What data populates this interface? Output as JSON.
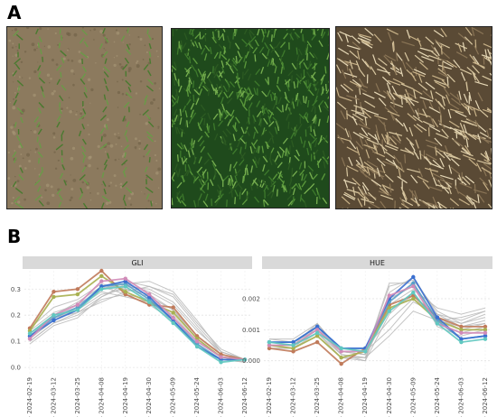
{
  "panels": {
    "a": "A",
    "b": "B"
  },
  "photos": [
    {
      "name": "early-growth-rows",
      "ground": "#8c7a5e",
      "plant": "#3f6b2a"
    },
    {
      "name": "dense-green-canopy",
      "ground": "#1f4a1c",
      "plant": "#5c9a3c"
    },
    {
      "name": "senescent-straw",
      "ground": "#5a4a35",
      "plant": "#d8c7a0"
    }
  ],
  "chart_data": [
    {
      "type": "line",
      "title": "GLI",
      "x": [
        "2024-02-19",
        "2024-03-12",
        "2024-03-25",
        "2024-04-08",
        "2024-04-19",
        "2024-04-30",
        "2024-05-09",
        "2024-05-24",
        "2024-06-03",
        "2024-06-12"
      ],
      "yticks": [
        "0.0",
        "0.1",
        "0.2",
        "0.3"
      ],
      "ylim": [
        -0.01,
        0.37
      ],
      "grid": true,
      "background_series_color": "#b8b8b8",
      "background_series": [
        [
          0.1,
          0.17,
          0.2,
          0.26,
          0.28,
          0.26,
          0.2,
          0.1,
          0.04,
          0.03
        ],
        [
          0.12,
          0.19,
          0.22,
          0.28,
          0.3,
          0.28,
          0.22,
          0.12,
          0.05,
          0.03
        ],
        [
          0.14,
          0.21,
          0.24,
          0.3,
          0.32,
          0.29,
          0.24,
          0.14,
          0.06,
          0.03
        ],
        [
          0.09,
          0.16,
          0.19,
          0.27,
          0.31,
          0.3,
          0.25,
          0.15,
          0.05,
          0.03
        ],
        [
          0.13,
          0.2,
          0.23,
          0.29,
          0.27,
          0.25,
          0.19,
          0.09,
          0.03,
          0.02
        ],
        [
          0.11,
          0.18,
          0.22,
          0.3,
          0.33,
          0.31,
          0.27,
          0.16,
          0.06,
          0.03
        ],
        [
          0.15,
          0.23,
          0.26,
          0.32,
          0.3,
          0.27,
          0.22,
          0.11,
          0.04,
          0.02
        ],
        [
          0.1,
          0.17,
          0.21,
          0.25,
          0.29,
          0.31,
          0.28,
          0.17,
          0.07,
          0.03
        ],
        [
          0.12,
          0.2,
          0.25,
          0.31,
          0.28,
          0.24,
          0.18,
          0.08,
          0.03,
          0.02
        ],
        [
          0.13,
          0.19,
          0.21,
          0.27,
          0.32,
          0.33,
          0.29,
          0.18,
          0.06,
          0.03
        ]
      ],
      "highlight_series": [
        {
          "color": "#c07a5a",
          "values": [
            0.15,
            0.29,
            0.3,
            0.37,
            0.28,
            0.24,
            0.23,
            0.12,
            0.05,
            0.03
          ]
        },
        {
          "color": "#a8b050",
          "values": [
            0.14,
            0.27,
            0.28,
            0.35,
            0.29,
            0.25,
            0.21,
            0.11,
            0.04,
            0.03
          ]
        },
        {
          "color": "#5aa0c8",
          "values": [
            0.12,
            0.19,
            0.23,
            0.31,
            0.32,
            0.26,
            0.18,
            0.09,
            0.03,
            0.03
          ]
        },
        {
          "color": "#3a6fd0",
          "values": [
            0.12,
            0.18,
            0.22,
            0.31,
            0.33,
            0.27,
            0.18,
            0.08,
            0.03,
            0.03
          ]
        },
        {
          "color": "#d08bb8",
          "values": [
            0.11,
            0.2,
            0.24,
            0.33,
            0.34,
            0.28,
            0.19,
            0.1,
            0.04,
            0.03
          ]
        },
        {
          "color": "#60c8c0",
          "values": [
            0.13,
            0.2,
            0.22,
            0.3,
            0.31,
            0.25,
            0.17,
            0.08,
            0.02,
            0.03
          ]
        }
      ]
    },
    {
      "type": "line",
      "title": "HUE",
      "x": [
        "2024-02-19",
        "2024-03-12",
        "2024-03-25",
        "2024-04-08",
        "2024-04-19",
        "2024-04-30",
        "2024-05-09",
        "2024-05-24",
        "2024-06-03",
        "2024-06-12"
      ],
      "yticks": [
        "0.000",
        "0.001",
        "0.002"
      ],
      "ylim": [
        -0.0003,
        0.0029
      ],
      "grid": true,
      "background_series_color": "#b8b8b8",
      "background_series": [
        [
          0.0005,
          0.0005,
          0.0009,
          0.0002,
          0.0001,
          0.002,
          0.0024,
          0.0014,
          0.001,
          0.0012
        ],
        [
          0.0006,
          0.0006,
          0.001,
          0.0003,
          0.0002,
          0.0024,
          0.0026,
          0.0016,
          0.0012,
          0.0014
        ],
        [
          0.0004,
          0.0004,
          0.0008,
          0.0001,
          0.0,
          0.0015,
          0.0022,
          0.0012,
          0.0009,
          0.0011
        ],
        [
          0.0007,
          0.0006,
          0.0011,
          0.0004,
          0.0003,
          0.001,
          0.0019,
          0.0015,
          0.0013,
          0.0016
        ],
        [
          0.0005,
          0.0005,
          0.001,
          0.0002,
          0.0001,
          0.0008,
          0.0016,
          0.0013,
          0.0011,
          0.0013
        ],
        [
          0.0006,
          0.0005,
          0.0012,
          0.0003,
          0.0002,
          0.0025,
          0.0025,
          0.0011,
          0.0008,
          0.001
        ],
        [
          0.0004,
          0.0004,
          0.0009,
          0.0001,
          0.0001,
          0.0018,
          0.0023,
          0.0017,
          0.0015,
          0.0017
        ],
        [
          0.0006,
          0.0006,
          0.001,
          0.0004,
          0.0004,
          0.0013,
          0.002,
          0.0014,
          0.0012,
          0.0015
        ],
        [
          0.0005,
          0.0004,
          0.0011,
          0.0002,
          0.0,
          0.0022,
          0.0027,
          0.0015,
          0.0011,
          0.0012
        ],
        [
          0.0007,
          0.0007,
          0.0012,
          0.0003,
          0.0002,
          0.0016,
          0.0021,
          0.0013,
          0.0014,
          0.0016
        ]
      ],
      "highlight_series": [
        {
          "color": "#c07a5a",
          "values": [
            0.0004,
            0.0003,
            0.0006,
            -0.0001,
            0.0004,
            0.0018,
            0.0021,
            0.0014,
            0.0011,
            0.0011
          ]
        },
        {
          "color": "#a8b050",
          "values": [
            0.0005,
            0.0004,
            0.0008,
            0.0001,
            0.0003,
            0.0017,
            0.002,
            0.0013,
            0.001,
            0.001
          ]
        },
        {
          "color": "#5aa0c8",
          "values": [
            0.0006,
            0.0006,
            0.0011,
            0.0004,
            0.0004,
            0.0019,
            0.0025,
            0.0013,
            0.0007,
            0.0008
          ]
        },
        {
          "color": "#3a6fd0",
          "values": [
            0.0006,
            0.0006,
            0.0011,
            0.0004,
            0.0004,
            0.002,
            0.0027,
            0.0014,
            0.0007,
            0.0008
          ]
        },
        {
          "color": "#d08bb8",
          "values": [
            0.0005,
            0.0005,
            0.001,
            0.0003,
            0.0003,
            0.0021,
            0.0024,
            0.0012,
            0.0009,
            0.0009
          ]
        },
        {
          "color": "#60c8c0",
          "values": [
            0.0006,
            0.0005,
            0.0009,
            0.0004,
            0.0003,
            0.0016,
            0.0022,
            0.0012,
            0.0006,
            0.0007
          ]
        }
      ]
    }
  ]
}
